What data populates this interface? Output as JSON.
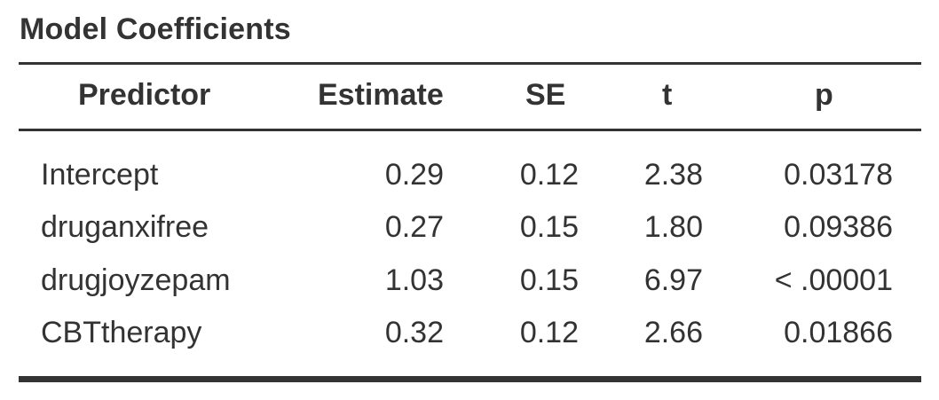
{
  "table": {
    "title": "Model Coefficients",
    "columns": {
      "predictor": "Predictor",
      "estimate": "Estimate",
      "se": "SE",
      "t": "t",
      "p": "p"
    },
    "rows": [
      {
        "predictor": "Intercept",
        "estimate": "0.29",
        "se": "0.12",
        "t": "2.38",
        "p": "0.03178"
      },
      {
        "predictor": "druganxifree",
        "estimate": "0.27",
        "se": "0.15",
        "t": "1.80",
        "p": "0.09386"
      },
      {
        "predictor": "drugjoyzepam",
        "estimate": "1.03",
        "se": "0.15",
        "t": "6.97",
        "p": "< .00001"
      },
      {
        "predictor": "CBTtherapy",
        "estimate": "0.32",
        "se": "0.12",
        "t": "2.66",
        "p": "0.01866"
      }
    ]
  },
  "colors": {
    "text": "#333333",
    "rules": "#333333",
    "background": "#ffffff"
  }
}
